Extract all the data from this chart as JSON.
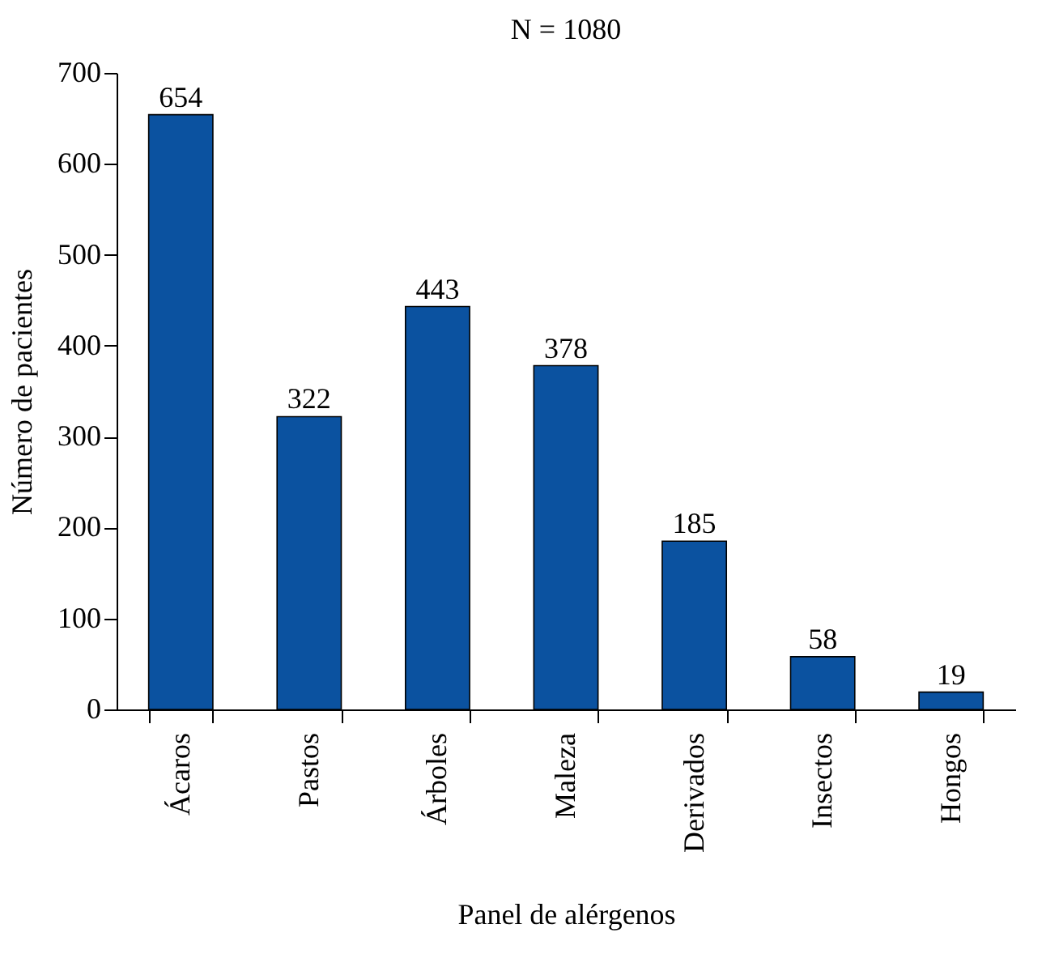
{
  "chart_data": {
    "type": "bar",
    "title": "N = 1080",
    "xlabel": "Panel de alérgenos",
    "ylabel": "Número de pacientes",
    "categories": [
      "Ácaros",
      "Pastos",
      "Árboles",
      "Maleza",
      "Derivados",
      "Insectos",
      "Hongos"
    ],
    "values": [
      654,
      322,
      443,
      378,
      185,
      58,
      19
    ],
    "color": "#0b52a0",
    "ylim": [
      0,
      700
    ],
    "yticks": [
      0,
      100,
      200,
      300,
      400,
      500,
      600,
      700
    ],
    "grid": false,
    "data_labels": true
  }
}
